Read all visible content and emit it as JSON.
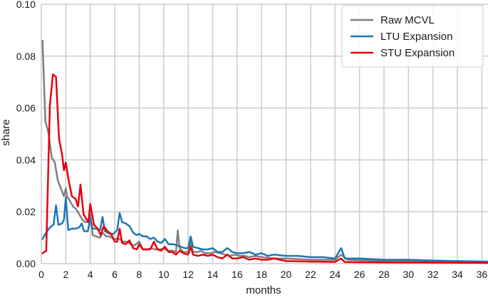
{
  "chart_data": {
    "type": "line",
    "xlabel": "months",
    "ylabel": "share",
    "xlim": [
      0,
      36.5
    ],
    "ylim": [
      0,
      0.1
    ],
    "xticks": [
      0,
      2,
      4,
      6,
      8,
      10,
      12,
      14,
      16,
      18,
      20,
      22,
      24,
      26,
      28,
      30,
      32,
      34,
      36
    ],
    "xtick_labels": [
      "0",
      "2",
      "4",
      "6",
      "8",
      "10",
      "12",
      "14",
      "16",
      "18",
      "20",
      "22",
      "24",
      "26",
      "28",
      "30",
      "32",
      "34",
      "36"
    ],
    "yticks": [
      0,
      0.02,
      0.04,
      0.06,
      0.08,
      0.1
    ],
    "ytick_labels": [
      "0.00",
      "0.02",
      "0.04",
      "0.06",
      "0.08",
      "0.10"
    ],
    "grid": true,
    "legend_position": "top-right",
    "series": [
      {
        "name": "Raw MCVL",
        "color": "#7f7f7f",
        "points": [
          [
            0.1,
            0.086
          ],
          [
            0.33,
            0.055
          ],
          [
            0.6,
            0.05
          ],
          [
            0.85,
            0.041
          ],
          [
            1.1,
            0.039
          ],
          [
            1.35,
            0.032
          ],
          [
            1.6,
            0.029
          ],
          [
            1.85,
            0.026
          ],
          [
            2.0,
            0.029
          ],
          [
            2.1,
            0.026
          ],
          [
            2.35,
            0.024
          ],
          [
            2.6,
            0.022
          ],
          [
            2.85,
            0.021
          ],
          [
            3.1,
            0.019
          ],
          [
            3.35,
            0.017
          ],
          [
            3.6,
            0.016
          ],
          [
            3.85,
            0.016
          ],
          [
            4.0,
            0.019
          ],
          [
            4.2,
            0.011
          ],
          [
            4.5,
            0.0105
          ],
          [
            4.8,
            0.01
          ],
          [
            5.0,
            0.012
          ],
          [
            5.3,
            0.0105
          ],
          [
            5.6,
            0.0105
          ],
          [
            5.9,
            0.0095
          ],
          [
            6.1,
            0.0095
          ],
          [
            6.4,
            0.0095
          ],
          [
            6.7,
            0.0085
          ],
          [
            7.0,
            0.0085
          ],
          [
            7.3,
            0.0075
          ],
          [
            7.6,
            0.007
          ],
          [
            8.0,
            0.0085
          ],
          [
            8.3,
            0.0055
          ],
          [
            8.7,
            0.0055
          ],
          [
            9.0,
            0.006
          ],
          [
            9.3,
            0.0055
          ],
          [
            9.7,
            0.0055
          ],
          [
            10.0,
            0.006
          ],
          [
            10.3,
            0.005
          ],
          [
            10.7,
            0.005
          ],
          [
            11.0,
            0.0045
          ],
          [
            11.15,
            0.0128
          ],
          [
            11.3,
            0.006
          ],
          [
            11.6,
            0.0045
          ],
          [
            12.0,
            0.0045
          ],
          [
            12.2,
            0.0085
          ],
          [
            12.4,
            0.0045
          ],
          [
            12.8,
            0.0045
          ],
          [
            13.0,
            0.005
          ],
          [
            13.4,
            0.004
          ],
          [
            13.8,
            0.004
          ],
          [
            14.2,
            0.0045
          ],
          [
            14.6,
            0.004
          ],
          [
            15.0,
            0.0035
          ],
          [
            15.4,
            0.003
          ],
          [
            15.8,
            0.0035
          ],
          [
            16.2,
            0.003
          ],
          [
            16.6,
            0.003
          ],
          [
            17.0,
            0.0025
          ],
          [
            17.5,
            0.003
          ],
          [
            18.0,
            0.0025
          ],
          [
            19.0,
            0.002
          ],
          [
            20.0,
            0.002
          ],
          [
            22.0,
            0.0015
          ],
          [
            24.0,
            0.0015
          ],
          [
            24.5,
            0.0035
          ],
          [
            25.0,
            0.0015
          ],
          [
            28.0,
            0.001
          ],
          [
            32.0,
            0.0008
          ],
          [
            36.5,
            0.0005
          ]
        ]
      },
      {
        "name": "LTU Expansion",
        "color": "#1f77b4",
        "points": [
          [
            0.1,
            0.0095
          ],
          [
            0.4,
            0.012
          ],
          [
            0.7,
            0.014
          ],
          [
            1.0,
            0.015
          ],
          [
            1.2,
            0.0225
          ],
          [
            1.4,
            0.015
          ],
          [
            1.7,
            0.0155
          ],
          [
            1.85,
            0.017
          ],
          [
            2.0,
            0.0255
          ],
          [
            2.2,
            0.013
          ],
          [
            2.5,
            0.0135
          ],
          [
            2.8,
            0.0135
          ],
          [
            3.1,
            0.014
          ],
          [
            3.3,
            0.0155
          ],
          [
            3.5,
            0.0125
          ],
          [
            3.8,
            0.0125
          ],
          [
            4.0,
            0.0175
          ],
          [
            4.2,
            0.0135
          ],
          [
            4.5,
            0.0135
          ],
          [
            4.8,
            0.013
          ],
          [
            5.0,
            0.018
          ],
          [
            5.2,
            0.0125
          ],
          [
            5.6,
            0.0115
          ],
          [
            5.9,
            0.0115
          ],
          [
            6.2,
            0.013
          ],
          [
            6.4,
            0.0195
          ],
          [
            6.6,
            0.016
          ],
          [
            6.9,
            0.0155
          ],
          [
            7.2,
            0.0145
          ],
          [
            7.5,
            0.012
          ],
          [
            7.8,
            0.011
          ],
          [
            8.0,
            0.0115
          ],
          [
            8.3,
            0.0105
          ],
          [
            8.6,
            0.0105
          ],
          [
            8.9,
            0.0095
          ],
          [
            9.2,
            0.01
          ],
          [
            9.5,
            0.0085
          ],
          [
            9.8,
            0.008
          ],
          [
            10.1,
            0.0095
          ],
          [
            10.4,
            0.0075
          ],
          [
            10.8,
            0.0075
          ],
          [
            11.1,
            0.007
          ],
          [
            11.4,
            0.0065
          ],
          [
            11.7,
            0.006
          ],
          [
            12.0,
            0.006
          ],
          [
            12.2,
            0.0105
          ],
          [
            12.4,
            0.0065
          ],
          [
            12.8,
            0.006
          ],
          [
            13.2,
            0.0055
          ],
          [
            13.6,
            0.0055
          ],
          [
            14.0,
            0.006
          ],
          [
            14.4,
            0.0045
          ],
          [
            14.8,
            0.0045
          ],
          [
            15.2,
            0.006
          ],
          [
            15.6,
            0.0045
          ],
          [
            16.0,
            0.004
          ],
          [
            16.5,
            0.004
          ],
          [
            17.0,
            0.0045
          ],
          [
            17.5,
            0.0035
          ],
          [
            18.0,
            0.004
          ],
          [
            18.5,
            0.003
          ],
          [
            19.0,
            0.0035
          ],
          [
            20.0,
            0.003
          ],
          [
            21.0,
            0.003
          ],
          [
            22.0,
            0.0025
          ],
          [
            23.0,
            0.0025
          ],
          [
            24.0,
            0.002
          ],
          [
            24.5,
            0.006
          ],
          [
            24.8,
            0.002
          ],
          [
            26.0,
            0.002
          ],
          [
            28.0,
            0.0015
          ],
          [
            30.0,
            0.0015
          ],
          [
            32.0,
            0.0012
          ],
          [
            34.0,
            0.001
          ],
          [
            36.5,
            0.0008
          ]
        ]
      },
      {
        "name": "STU Expansion",
        "color": "#e8000b",
        "points": [
          [
            0.1,
            0.004
          ],
          [
            0.4,
            0.005
          ],
          [
            0.7,
            0.061
          ],
          [
            0.95,
            0.073
          ],
          [
            1.2,
            0.072
          ],
          [
            1.45,
            0.048
          ],
          [
            1.7,
            0.042
          ],
          [
            1.85,
            0.036
          ],
          [
            2.0,
            0.039
          ],
          [
            2.2,
            0.033
          ],
          [
            2.5,
            0.026
          ],
          [
            2.8,
            0.025
          ],
          [
            3.0,
            0.022
          ],
          [
            3.2,
            0.0305
          ],
          [
            3.45,
            0.019
          ],
          [
            3.7,
            0.017
          ],
          [
            3.85,
            0.016
          ],
          [
            4.0,
            0.023
          ],
          [
            4.3,
            0.015
          ],
          [
            4.6,
            0.0135
          ],
          [
            4.85,
            0.011
          ],
          [
            5.1,
            0.0145
          ],
          [
            5.4,
            0.0125
          ],
          [
            5.7,
            0.0115
          ],
          [
            6.0,
            0.0085
          ],
          [
            6.2,
            0.0085
          ],
          [
            6.4,
            0.0135
          ],
          [
            6.6,
            0.008
          ],
          [
            6.9,
            0.0075
          ],
          [
            7.2,
            0.009
          ],
          [
            7.5,
            0.006
          ],
          [
            7.8,
            0.0055
          ],
          [
            8.0,
            0.0075
          ],
          [
            8.3,
            0.0055
          ],
          [
            8.6,
            0.0055
          ],
          [
            8.9,
            0.0055
          ],
          [
            9.2,
            0.0085
          ],
          [
            9.5,
            0.0055
          ],
          [
            9.8,
            0.005
          ],
          [
            10.1,
            0.0065
          ],
          [
            10.4,
            0.0045
          ],
          [
            10.7,
            0.0045
          ],
          [
            11.0,
            0.0035
          ],
          [
            11.3,
            0.005
          ],
          [
            11.6,
            0.004
          ],
          [
            12.0,
            0.0035
          ],
          [
            12.2,
            0.0065
          ],
          [
            12.4,
            0.0035
          ],
          [
            12.8,
            0.003
          ],
          [
            13.2,
            0.0035
          ],
          [
            13.6,
            0.003
          ],
          [
            14.0,
            0.0035
          ],
          [
            14.4,
            0.0025
          ],
          [
            14.8,
            0.002
          ],
          [
            15.2,
            0.0035
          ],
          [
            15.6,
            0.002
          ],
          [
            16.0,
            0.002
          ],
          [
            16.5,
            0.0025
          ],
          [
            17.0,
            0.0015
          ],
          [
            17.5,
            0.002
          ],
          [
            18.0,
            0.0015
          ],
          [
            18.5,
            0.0015
          ],
          [
            19.0,
            0.002
          ],
          [
            20.0,
            0.001
          ],
          [
            22.0,
            0.0008
          ],
          [
            24.0,
            0.0007
          ],
          [
            24.5,
            0.002
          ],
          [
            24.8,
            0.0006
          ],
          [
            28.0,
            0.0005
          ],
          [
            32.0,
            0.0004
          ],
          [
            36.5,
            0.0003
          ]
        ]
      }
    ]
  }
}
